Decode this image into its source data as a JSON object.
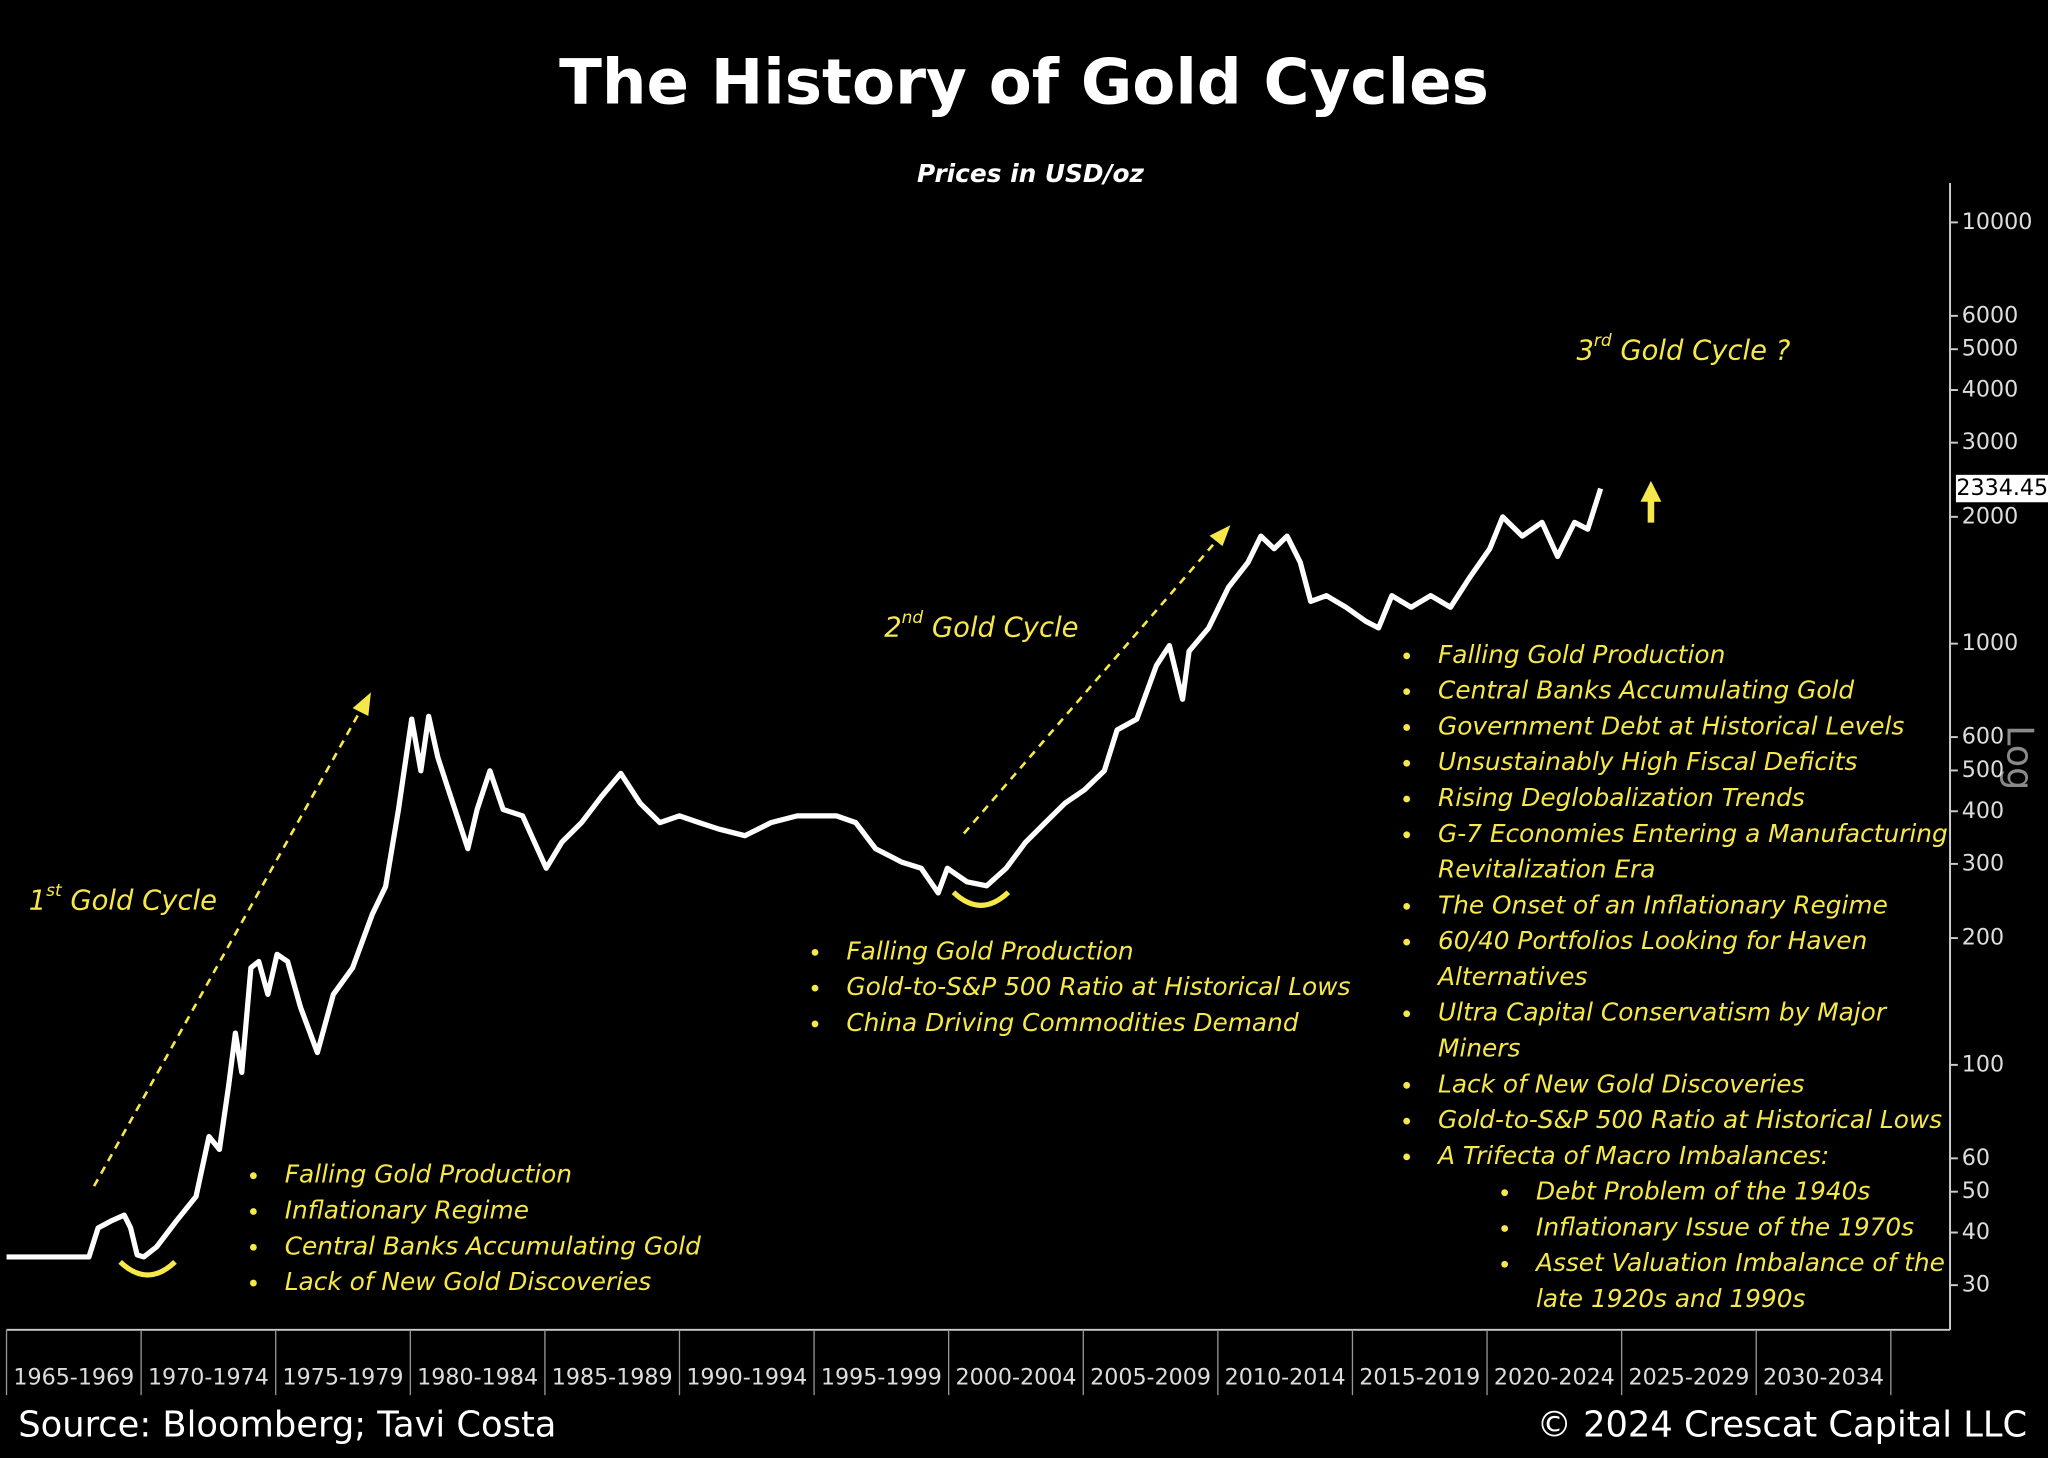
{
  "chart_data": {
    "type": "line",
    "title": "The History of Gold Cycles",
    "subtitle": "Prices in USD/oz",
    "log_scale": true,
    "log_label": "Log",
    "grid": false,
    "series": [
      {
        "color": "#ffffff",
        "x": [
          1965.0,
          1968.06,
          1968.4,
          1968.88,
          1969.37,
          1969.61,
          1969.85,
          1970.1,
          1970.58,
          1971.31,
          1972.04,
          1972.52,
          1972.91,
          1973.25,
          1973.5,
          1973.74,
          1974.08,
          1974.37,
          1974.71,
          1975.05,
          1975.44,
          1975.92,
          1976.55,
          1977.14,
          1977.86,
          1978.59,
          1979.08,
          1979.56,
          1980.05,
          1980.39,
          1980.68,
          1981.02,
          1981.5,
          1982.14,
          1982.48,
          1982.96,
          1983.45,
          1984.17,
          1985.05,
          1985.63,
          1986.36,
          1987.09,
          1987.82,
          1988.54,
          1989.27,
          1990.0,
          1990.73,
          1991.46,
          1992.43,
          1993.4,
          1994.37,
          1995.83,
          1996.55,
          1997.28,
          1998.25,
          1998.98,
          1999.61,
          1999.95,
          2000.68,
          2001.41,
          2002.14,
          2002.86,
          2003.59,
          2004.32,
          2005.05,
          2005.78,
          2006.26,
          2006.99,
          2007.72,
          2008.2,
          2008.69,
          2008.93,
          2009.66,
          2010.39,
          2011.12,
          2011.6,
          2012.09,
          2012.57,
          2013.06,
          2013.45,
          2014.03,
          2014.76,
          2015.49,
          2015.97,
          2016.46,
          2017.18,
          2017.91,
          2018.64,
          2019.37,
          2020.1,
          2020.58,
          2021.31,
          2022.04,
          2022.62,
          2023.25,
          2023.74,
          2024.22
        ],
        "values": [
          35,
          35,
          41,
          42.6,
          44,
          41,
          35.4,
          35,
          37,
          42.6,
          48.7,
          67.6,
          63,
          89,
          119,
          96,
          170,
          176,
          147,
          183,
          176,
          137,
          107,
          147,
          170,
          228,
          265,
          404,
          662,
          499,
          672,
          537,
          433,
          326,
          404,
          499,
          404,
          390,
          293,
          338,
          376,
          433,
          492,
          418,
          376,
          390,
          376,
          363,
          350,
          376,
          390,
          390,
          376,
          326,
          303,
          293,
          256,
          293,
          272,
          266,
          293,
          338,
          376,
          418,
          450,
          499,
          624,
          662,
          888,
          990,
          738,
          960,
          1090,
          1360,
          1560,
          1800,
          1680,
          1800,
          1560,
          1260,
          1300,
          1220,
          1130,
          1090,
          1300,
          1220,
          1300,
          1220,
          1440,
          1680,
          2000,
          1800,
          1940,
          1610,
          1940,
          1870,
          2334.45
        ]
      }
    ],
    "current_price_label": "2334.45",
    "xlim": [
      1965,
      2037.2
    ],
    "xticks": [
      1965,
      1970,
      1975,
      1980,
      1985,
      1990,
      1995,
      2000,
      2005,
      2010,
      2015,
      2020,
      2025,
      2030,
      2035
    ],
    "categories": [
      "1965-1969",
      "1970-1974",
      "1975-1979",
      "1980-1984",
      "1985-1989",
      "1990-1994",
      "1995-1999",
      "2000-2004",
      "2005-2009",
      "2010-2014",
      "2015-2019",
      "2020-2024",
      "2025-2029",
      "2030-2034"
    ],
    "ylim": [
      23.5,
      12400
    ],
    "yticks": [
      30,
      40,
      50,
      60,
      100,
      200,
      300,
      400,
      500,
      600,
      1000,
      2000,
      3000,
      4000,
      5000,
      6000,
      10000
    ],
    "annotation_color": "#f7e84a",
    "cycle_labels": [
      {
        "num": "1",
        "sup": "st",
        "text": " Gold Cycle"
      },
      {
        "num": "2",
        "sup": "nd",
        "text": " Gold Cycle"
      },
      {
        "num": "3",
        "sup": "rd",
        "text": " Gold Cycle ?"
      }
    ],
    "notes": [
      {
        "items": [
          [
            "Falling Gold Production"
          ],
          [
            "Inflationary Regime"
          ],
          [
            "Central Banks Accumulating Gold"
          ],
          [
            "Lack of New Gold Discoveries"
          ]
        ]
      },
      {
        "items": [
          [
            "Falling Gold Production"
          ],
          [
            "Gold-to-S&P 500 Ratio at Historical Lows"
          ],
          [
            "China Driving Commodities Demand"
          ]
        ]
      },
      {
        "items": [
          [
            "Falling Gold Production"
          ],
          [
            "Central Banks Accumulating Gold"
          ],
          [
            "Government Debt at Historical Levels"
          ],
          [
            "Unsustainably High Fiscal Deficits"
          ],
          [
            "Rising Deglobalization Trends"
          ],
          [
            "G-7 Economies Entering a Manufacturing",
            "Revitalization Era"
          ],
          [
            "The Onset of an Inflationary Regime"
          ],
          [
            "60/40 Portfolios Looking for Haven",
            "Alternatives"
          ],
          [
            "Ultra Capital Conservatism by Major",
            "Miners"
          ],
          [
            "Lack of New Gold Discoveries"
          ],
          [
            "Gold-to-S&P 500 Ratio at Historical Lows"
          ],
          [
            "A Trifecta of Macro Imbalances:"
          ]
        ],
        "sub_items": [
          [
            "Debt Problem of the 1940s"
          ],
          [
            "Inflationary Issue of the 1970s"
          ],
          [
            "Asset Valuation Imbalance of the",
            "late 1920s and 1990s"
          ]
        ]
      }
    ],
    "source": "Source: Bloomberg; Tavi Costa",
    "copyright": "© 2024 Crescat Capital LLC"
  }
}
